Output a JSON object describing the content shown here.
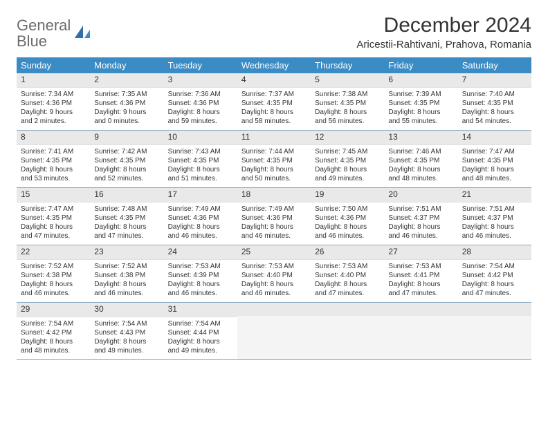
{
  "logo": {
    "text1": "General",
    "text2": "Blue"
  },
  "title": "December 2024",
  "location": "Aricestii-Rahtivani, Prahova, Romania",
  "day_headers": [
    "Sunday",
    "Monday",
    "Tuesday",
    "Wednesday",
    "Thursday",
    "Friday",
    "Saturday"
  ],
  "colors": {
    "header_bg": "#3b8bc4",
    "header_text": "#ffffff",
    "daynum_bg": "#e9e9e9",
    "row_border": "#8aa9c2",
    "empty_bg": "#f4f4f4"
  },
  "weeks": [
    [
      {
        "n": "1",
        "sr": "7:34 AM",
        "ss": "4:36 PM",
        "dl": "9 hours and 2 minutes."
      },
      {
        "n": "2",
        "sr": "7:35 AM",
        "ss": "4:36 PM",
        "dl": "9 hours and 0 minutes."
      },
      {
        "n": "3",
        "sr": "7:36 AM",
        "ss": "4:36 PM",
        "dl": "8 hours and 59 minutes."
      },
      {
        "n": "4",
        "sr": "7:37 AM",
        "ss": "4:35 PM",
        "dl": "8 hours and 58 minutes."
      },
      {
        "n": "5",
        "sr": "7:38 AM",
        "ss": "4:35 PM",
        "dl": "8 hours and 56 minutes."
      },
      {
        "n": "6",
        "sr": "7:39 AM",
        "ss": "4:35 PM",
        "dl": "8 hours and 55 minutes."
      },
      {
        "n": "7",
        "sr": "7:40 AM",
        "ss": "4:35 PM",
        "dl": "8 hours and 54 minutes."
      }
    ],
    [
      {
        "n": "8",
        "sr": "7:41 AM",
        "ss": "4:35 PM",
        "dl": "8 hours and 53 minutes."
      },
      {
        "n": "9",
        "sr": "7:42 AM",
        "ss": "4:35 PM",
        "dl": "8 hours and 52 minutes."
      },
      {
        "n": "10",
        "sr": "7:43 AM",
        "ss": "4:35 PM",
        "dl": "8 hours and 51 minutes."
      },
      {
        "n": "11",
        "sr": "7:44 AM",
        "ss": "4:35 PM",
        "dl": "8 hours and 50 minutes."
      },
      {
        "n": "12",
        "sr": "7:45 AM",
        "ss": "4:35 PM",
        "dl": "8 hours and 49 minutes."
      },
      {
        "n": "13",
        "sr": "7:46 AM",
        "ss": "4:35 PM",
        "dl": "8 hours and 48 minutes."
      },
      {
        "n": "14",
        "sr": "7:47 AM",
        "ss": "4:35 PM",
        "dl": "8 hours and 48 minutes."
      }
    ],
    [
      {
        "n": "15",
        "sr": "7:47 AM",
        "ss": "4:35 PM",
        "dl": "8 hours and 47 minutes."
      },
      {
        "n": "16",
        "sr": "7:48 AM",
        "ss": "4:35 PM",
        "dl": "8 hours and 47 minutes."
      },
      {
        "n": "17",
        "sr": "7:49 AM",
        "ss": "4:36 PM",
        "dl": "8 hours and 46 minutes."
      },
      {
        "n": "18",
        "sr": "7:49 AM",
        "ss": "4:36 PM",
        "dl": "8 hours and 46 minutes."
      },
      {
        "n": "19",
        "sr": "7:50 AM",
        "ss": "4:36 PM",
        "dl": "8 hours and 46 minutes."
      },
      {
        "n": "20",
        "sr": "7:51 AM",
        "ss": "4:37 PM",
        "dl": "8 hours and 46 minutes."
      },
      {
        "n": "21",
        "sr": "7:51 AM",
        "ss": "4:37 PM",
        "dl": "8 hours and 46 minutes."
      }
    ],
    [
      {
        "n": "22",
        "sr": "7:52 AM",
        "ss": "4:38 PM",
        "dl": "8 hours and 46 minutes."
      },
      {
        "n": "23",
        "sr": "7:52 AM",
        "ss": "4:38 PM",
        "dl": "8 hours and 46 minutes."
      },
      {
        "n": "24",
        "sr": "7:53 AM",
        "ss": "4:39 PM",
        "dl": "8 hours and 46 minutes."
      },
      {
        "n": "25",
        "sr": "7:53 AM",
        "ss": "4:40 PM",
        "dl": "8 hours and 46 minutes."
      },
      {
        "n": "26",
        "sr": "7:53 AM",
        "ss": "4:40 PM",
        "dl": "8 hours and 47 minutes."
      },
      {
        "n": "27",
        "sr": "7:53 AM",
        "ss": "4:41 PM",
        "dl": "8 hours and 47 minutes."
      },
      {
        "n": "28",
        "sr": "7:54 AM",
        "ss": "4:42 PM",
        "dl": "8 hours and 47 minutes."
      }
    ],
    [
      {
        "n": "29",
        "sr": "7:54 AM",
        "ss": "4:42 PM",
        "dl": "8 hours and 48 minutes."
      },
      {
        "n": "30",
        "sr": "7:54 AM",
        "ss": "4:43 PM",
        "dl": "8 hours and 49 minutes."
      },
      {
        "n": "31",
        "sr": "7:54 AM",
        "ss": "4:44 PM",
        "dl": "8 hours and 49 minutes."
      },
      null,
      null,
      null,
      null
    ]
  ],
  "labels": {
    "sunrise": "Sunrise:",
    "sunset": "Sunset:",
    "daylight": "Daylight:"
  }
}
